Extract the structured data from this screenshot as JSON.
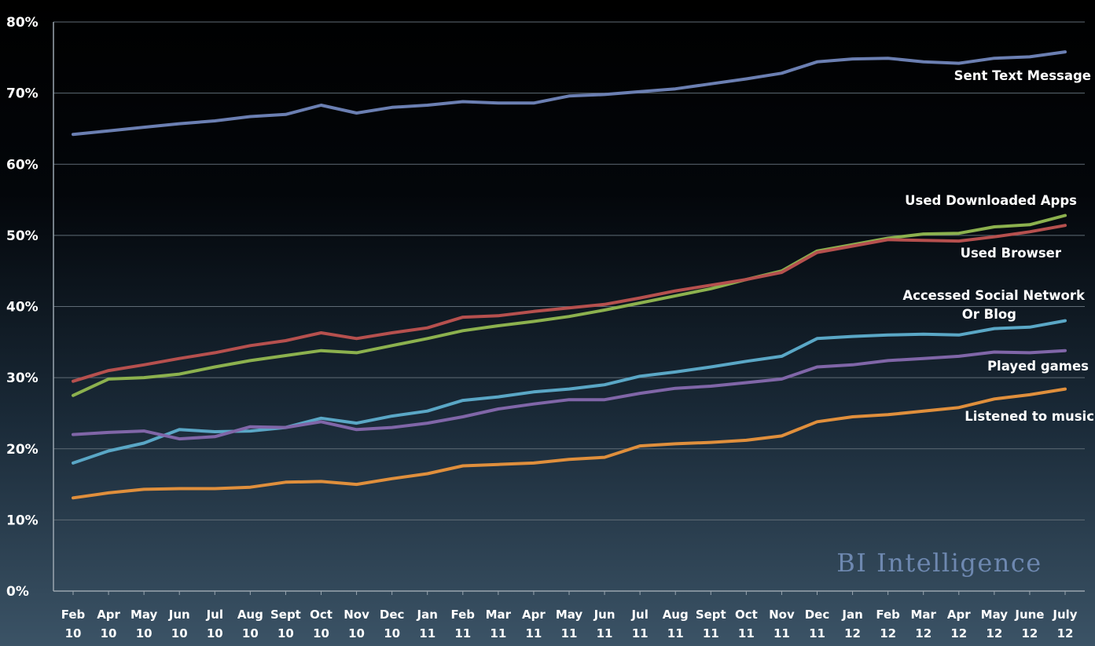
{
  "chart_data": {
    "type": "line",
    "title": "",
    "xlabel": "",
    "ylabel": "",
    "ylim": [
      0,
      80
    ],
    "y_ticks": [
      "0%",
      "10%",
      "20%",
      "30%",
      "40%",
      "50%",
      "60%",
      "70%",
      "80%"
    ],
    "grid": "horizontal",
    "categories": [
      [
        "Feb",
        "10"
      ],
      [
        "Apr",
        "10"
      ],
      [
        "May",
        "10"
      ],
      [
        "Jun",
        "10"
      ],
      [
        "Jul",
        "10"
      ],
      [
        "Aug",
        "10"
      ],
      [
        "Sept",
        "10"
      ],
      [
        "Oct",
        "10"
      ],
      [
        "Nov",
        "10"
      ],
      [
        "Dec",
        "10"
      ],
      [
        "Jan",
        "11"
      ],
      [
        "Feb",
        "11"
      ],
      [
        "Mar",
        "11"
      ],
      [
        "Apr",
        "11"
      ],
      [
        "May",
        "11"
      ],
      [
        "Jun",
        "11"
      ],
      [
        "Jul",
        "11"
      ],
      [
        "Aug",
        "11"
      ],
      [
        "Sept",
        "11"
      ],
      [
        "Oct",
        "11"
      ],
      [
        "Nov",
        "11"
      ],
      [
        "Dec",
        "11"
      ],
      [
        "Jan",
        "12"
      ],
      [
        "Feb",
        "12"
      ],
      [
        "Mar",
        "12"
      ],
      [
        "Apr",
        "12"
      ],
      [
        "May",
        "12"
      ],
      [
        "June",
        "12"
      ],
      [
        "July",
        "12"
      ]
    ],
    "series": [
      {
        "name": "Sent Text Message",
        "label_lines": [
          "Sent Text Message"
        ],
        "color": "#6b7fb2",
        "values": [
          64.2,
          64.7,
          65.2,
          65.7,
          66.1,
          66.7,
          67.0,
          68.3,
          67.2,
          68.0,
          68.3,
          68.8,
          68.6,
          68.6,
          69.6,
          69.8,
          70.2,
          70.6,
          71.3,
          72.0,
          72.8,
          74.4,
          74.8,
          74.9,
          74.4,
          74.2,
          74.9,
          75.1,
          75.8
        ]
      },
      {
        "name": "Used Downloaded Apps",
        "label_lines": [
          "Used Downloaded Apps"
        ],
        "color": "#8cb14e",
        "values": [
          27.5,
          29.8,
          30.0,
          30.5,
          31.5,
          32.4,
          33.1,
          33.8,
          33.5,
          34.5,
          35.5,
          36.6,
          37.3,
          37.9,
          38.6,
          39.5,
          40.5,
          41.5,
          42.5,
          43.8,
          45.0,
          47.8,
          48.7,
          49.6,
          50.2,
          50.3,
          51.2,
          51.5,
          52.8
        ]
      },
      {
        "name": "Used Browser",
        "label_lines": [
          "Used Browser"
        ],
        "color": "#b6504e",
        "values": [
          29.5,
          31.0,
          31.8,
          32.7,
          33.5,
          34.5,
          35.2,
          36.3,
          35.5,
          36.3,
          37.0,
          38.5,
          38.7,
          39.3,
          39.8,
          40.3,
          41.2,
          42.2,
          43.0,
          43.8,
          44.8,
          47.6,
          48.5,
          49.4,
          49.3,
          49.2,
          49.8,
          50.5,
          51.4
        ]
      },
      {
        "name": "Accessed Social Network Or Blog",
        "label_lines": [
          "Accessed Social Network",
          "Or Blog"
        ],
        "color": "#5aa7c6",
        "values": [
          18.0,
          19.7,
          20.8,
          22.7,
          22.4,
          22.5,
          23.0,
          24.3,
          23.6,
          24.6,
          25.3,
          26.8,
          27.3,
          28.0,
          28.4,
          29.0,
          30.2,
          30.8,
          31.5,
          32.3,
          33.0,
          35.5,
          35.8,
          36.0,
          36.1,
          36.0,
          36.9,
          37.1,
          38.0
        ]
      },
      {
        "name": "Played games",
        "label_lines": [
          "Played games"
        ],
        "color": "#8066a8",
        "values": [
          22.0,
          22.3,
          22.5,
          21.4,
          21.7,
          23.1,
          23.0,
          23.8,
          22.7,
          23.0,
          23.6,
          24.5,
          25.6,
          26.3,
          26.9,
          26.9,
          27.8,
          28.5,
          28.8,
          29.3,
          29.8,
          31.5,
          31.8,
          32.4,
          32.7,
          33.0,
          33.6,
          33.5,
          33.8
        ]
      },
      {
        "name": "Listened to music",
        "label_lines": [
          "Listened to music"
        ],
        "color": "#e08f3c",
        "values": [
          13.1,
          13.8,
          14.3,
          14.4,
          14.4,
          14.6,
          15.3,
          15.4,
          15.0,
          15.8,
          16.5,
          17.6,
          17.8,
          18.0,
          18.5,
          18.8,
          20.4,
          20.7,
          20.9,
          21.2,
          21.8,
          23.8,
          24.5,
          24.8,
          25.3,
          25.8,
          27.0,
          27.6,
          28.4
        ]
      }
    ],
    "legend": "inline-right",
    "watermark": "BI Intelligence"
  }
}
